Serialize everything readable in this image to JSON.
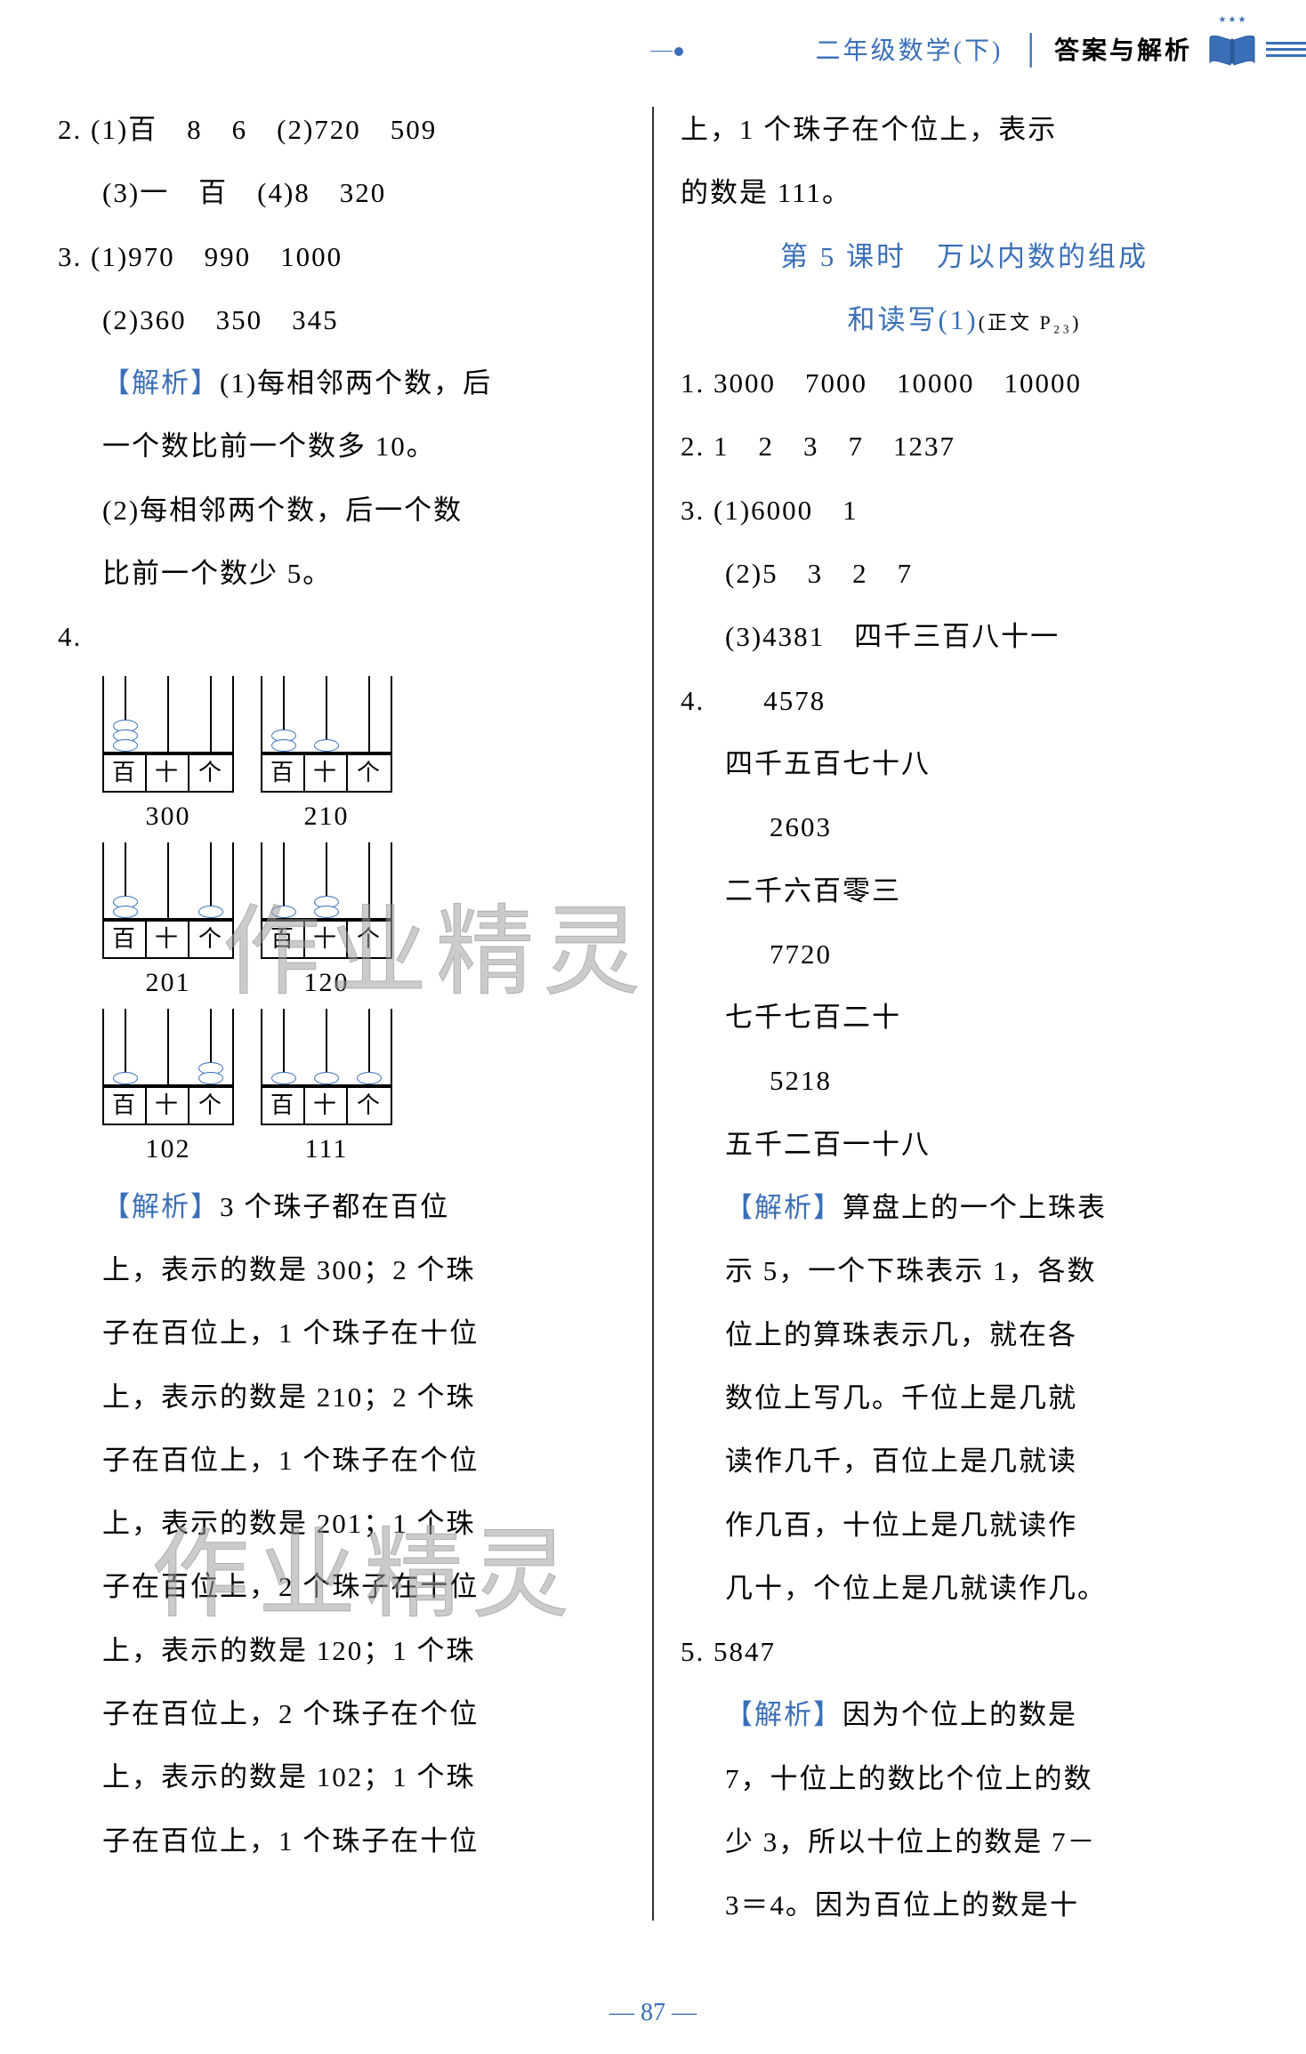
{
  "header": {
    "subject": "二年级数学(下)",
    "answer": "答案与解析"
  },
  "pageNum": "— 87 —",
  "left": {
    "q2_line1": "2. (1)百　8　6　(2)720　509",
    "q2_line2": "(3)一　百　(4)8　320",
    "q3_line1": "3. (1)970　990　1000",
    "q3_line2": "(2)360　350　345",
    "jiexi_label": "【解析】",
    "jiexi3_1": "(1)每相邻两个数，后",
    "jiexi3_2": "一个数比前一个数多 10。",
    "jiexi3_3": "(2)每相邻两个数，后一个数",
    "jiexi3_4": "比前一个数少 5。",
    "q4_label": "4.",
    "abacus_labels": [
      "百",
      "十",
      "个"
    ],
    "abacus": [
      {
        "beads": [
          3,
          0,
          0
        ],
        "num": "300"
      },
      {
        "beads": [
          2,
          1,
          0
        ],
        "num": "210"
      },
      {
        "beads": [
          2,
          0,
          1
        ],
        "num": "201"
      },
      {
        "beads": [
          1,
          2,
          0
        ],
        "num": "120"
      },
      {
        "beads": [
          1,
          0,
          2
        ],
        "num": "102"
      },
      {
        "beads": [
          1,
          1,
          1
        ],
        "num": "111"
      }
    ],
    "jiexi4_1": "3 个珠子都在百位",
    "jiexi4_2": "上，表示的数是 300；2 个珠",
    "jiexi4_3": "子在百位上，1 个珠子在十位",
    "jiexi4_4": "上，表示的数是 210；2 个珠",
    "jiexi4_5": "子在百位上，1 个珠子在个位",
    "jiexi4_6": "上，表示的数是 201；1 个珠",
    "jiexi4_7": "子在百位上，2 个珠子在十位",
    "jiexi4_8": "上，表示的数是 120；1 个珠",
    "jiexi4_9": "子在百位上，2 个珠子在个位",
    "jiexi4_10": "上，表示的数是 102；1 个珠",
    "jiexi4_11": "子在百位上，1 个珠子在十位"
  },
  "right": {
    "cont1": "上，1 个珠子在个位上，表示",
    "cont2": "的数是 111。",
    "lesson_title1": "第 5 课时　万以内数的组成",
    "lesson_title2": "和读写(1)",
    "lesson_ref": "(正文 P₂₃)",
    "q1": "1. 3000　7000　10000　10000",
    "q2": "2. 1　2　3　7　1237",
    "q3_1": "3. (1)6000　1",
    "q3_2": "(2)5　3　2　7",
    "q3_3": "(3)4381　四千三百八十一",
    "q4_label": "4.",
    "q4_n1": "4578",
    "q4_c1": "四千五百七十八",
    "q4_n2": "2603",
    "q4_c2": "二千六百零三",
    "q4_n3": "7720",
    "q4_c3": "七千七百二十",
    "q4_n4": "5218",
    "q4_c4": "五千二百一十八",
    "jiexi_label": "【解析】",
    "jiexi4_1": "算盘上的一个上珠表",
    "jiexi4_2": "示 5，一个下珠表示 1，各数",
    "jiexi4_3": "位上的算珠表示几，就在各",
    "jiexi4_4": "数位上写几。千位上是几就",
    "jiexi4_5": "读作几千，百位上是几就读",
    "jiexi4_6": "作几百，十位上是几就读作",
    "jiexi4_7": "几十，个位上是几就读作几。",
    "q5": "5. 5847",
    "jiexi5_1": "因为个位上的数是",
    "jiexi5_2": "7，十位上的数比个位上的数",
    "jiexi5_3": "少 3，所以十位上的数是 7－",
    "jiexi5_4": "3＝4。因为百位上的数是十"
  },
  "watermark": "作业精灵",
  "colors": {
    "blue": "#3a6fb8",
    "black": "#000000"
  }
}
